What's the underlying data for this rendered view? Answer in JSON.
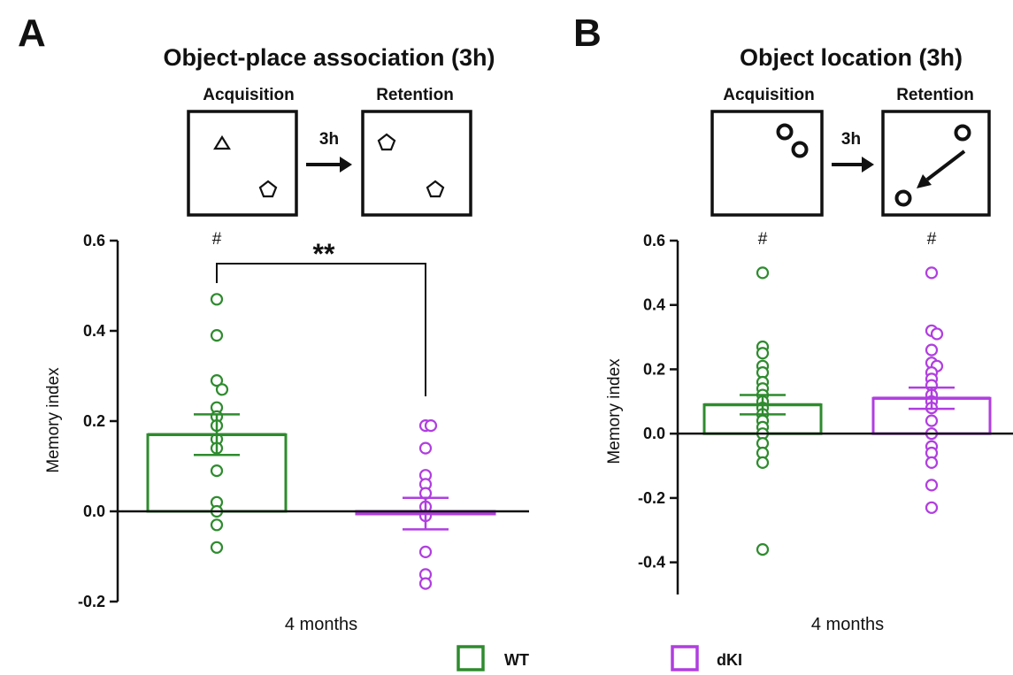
{
  "panels": [
    {
      "letter": "A",
      "title": "Object-place association (3h)",
      "schematic": {
        "acquisition_label": "Acquisition",
        "retention_label": "Retention",
        "delay_label": "3h",
        "acquisition_objects": [
          "triangle-icon",
          "pentagon-icon"
        ],
        "retention_objects": [
          "pentagon-icon",
          "pentagon-icon"
        ]
      },
      "significance": {
        "brackets": [
          {
            "from": "WT",
            "to": "dKI",
            "label": "**"
          }
        ],
        "hash_markers": [
          "#"
        ]
      }
    },
    {
      "letter": "B",
      "title": "Object location (3h)",
      "schematic": {
        "acquisition_label": "Acquisition",
        "retention_label": "Retention",
        "delay_label": "3h",
        "acquisition_objects": [
          "circle-icon",
          "circle-icon"
        ],
        "retention_objects": [
          "circle-icon",
          "circle-icon"
        ],
        "movement_arrow": "arrow-icon"
      },
      "significance": {
        "brackets": [],
        "hash_markers": [
          "#",
          "#"
        ]
      }
    }
  ],
  "legend": [
    {
      "label": "WT",
      "color": "#2e8b2e"
    },
    {
      "label": "dKI",
      "color": "#b03ee0"
    }
  ],
  "chart_data": [
    {
      "type": "bar",
      "title": "",
      "xlabel": "4 months",
      "ylabel": "Memory index",
      "ylim": [
        -0.2,
        0.6
      ],
      "yticks": [
        -0.2,
        0.0,
        0.2,
        0.4,
        0.6
      ],
      "ytick_labels": [
        "-0.2",
        "0.0",
        "0.2",
        "0.4",
        "0.6"
      ],
      "grid": false,
      "series": [
        {
          "name": "WT",
          "color": "#2e8b2e",
          "mean": 0.17,
          "sem": 0.045,
          "points": [
            0.47,
            0.39,
            0.29,
            0.27,
            0.23,
            0.21,
            0.19,
            0.16,
            0.14,
            0.09,
            0.02,
            0.0,
            -0.03,
            -0.08
          ]
        },
        {
          "name": "dKI",
          "color": "#b03ee0",
          "mean": -0.005,
          "sem": 0.035,
          "points": [
            0.19,
            0.19,
            0.14,
            0.08,
            0.06,
            0.04,
            0.01,
            -0.01,
            -0.09,
            -0.14,
            -0.16
          ]
        }
      ]
    },
    {
      "type": "bar",
      "title": "",
      "xlabel": "4 months",
      "ylabel": "Memory index",
      "ylim": [
        -0.5,
        0.6
      ],
      "yticks": [
        -0.4,
        -0.2,
        0.0,
        0.2,
        0.4,
        0.6
      ],
      "ytick_labels": [
        "-0.4",
        "-0.2",
        "0.0",
        "0.2",
        "0.4",
        "0.6"
      ],
      "grid": false,
      "series": [
        {
          "name": "WT",
          "color": "#2e8b2e",
          "mean": 0.09,
          "sem": 0.03,
          "points": [
            0.5,
            0.27,
            0.25,
            0.21,
            0.19,
            0.16,
            0.14,
            0.12,
            0.1,
            0.08,
            0.06,
            0.04,
            0.02,
            0.0,
            -0.03,
            -0.06,
            -0.09,
            -0.36
          ]
        },
        {
          "name": "dKI",
          "color": "#b03ee0",
          "mean": 0.11,
          "sem": 0.033,
          "points": [
            0.5,
            0.32,
            0.31,
            0.26,
            0.22,
            0.21,
            0.19,
            0.17,
            0.15,
            0.12,
            0.1,
            0.08,
            0.04,
            0.0,
            -0.04,
            -0.06,
            -0.09,
            -0.16,
            -0.23
          ]
        }
      ]
    }
  ]
}
